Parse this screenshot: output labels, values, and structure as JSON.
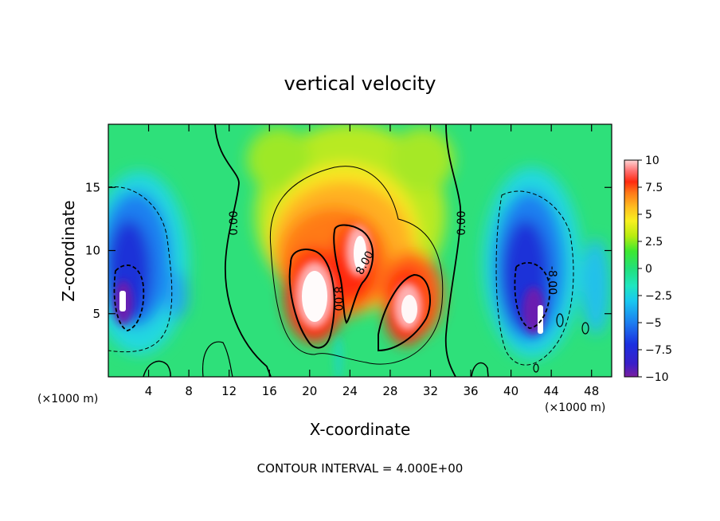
{
  "chart_data": {
    "type": "heatmap",
    "title": "vertical velocity",
    "xlabel": "X-coordinate",
    "ylabel": "Z-coordinate",
    "x_unit_left": "(×1000 m)",
    "x_unit_right": "(×1000 m)",
    "xlim": [
      0,
      50
    ],
    "ylim": [
      0,
      20
    ],
    "x_ticks": [
      4,
      8,
      12,
      16,
      20,
      24,
      28,
      32,
      36,
      40,
      44,
      48
    ],
    "y_ticks": [
      5,
      10,
      15
    ],
    "colorbar": {
      "min": -10,
      "max": 10,
      "ticks": [
        "10",
        "7.5",
        "5",
        "2.5",
        "0",
        "−2.5",
        "−5",
        "−7.5",
        "−10"
      ]
    },
    "contour_labels": [
      "0.00",
      "8.00",
      "8.00",
      "0.00",
      "-8.00"
    ],
    "footer": "CONTOUR INTERVAL = 4.000E+00"
  }
}
